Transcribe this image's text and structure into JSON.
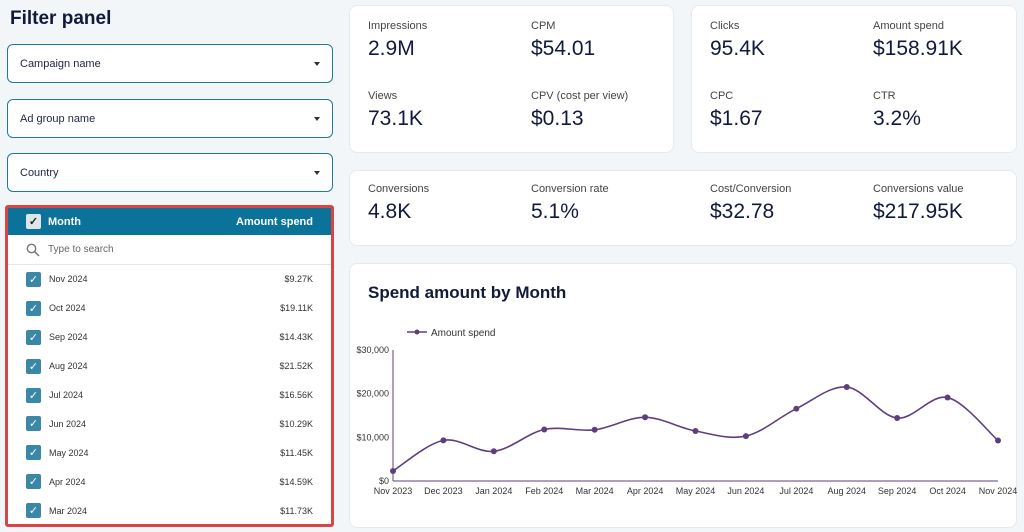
{
  "filter_panel": {
    "title": "Filter panel",
    "dropdowns": [
      "Campaign name",
      "Ad group name",
      "Country"
    ],
    "month_filter": {
      "header_month": "Month",
      "header_amount": "Amount spend",
      "search_placeholder": "Type to search",
      "rows": [
        {
          "month": "Nov 2024",
          "amount": "$9.27K"
        },
        {
          "month": "Oct 2024",
          "amount": "$19.11K"
        },
        {
          "month": "Sep 2024",
          "amount": "$14.43K"
        },
        {
          "month": "Aug 2024",
          "amount": "$21.52K"
        },
        {
          "month": "Jul 2024",
          "amount": "$16.56K"
        },
        {
          "month": "Jun 2024",
          "amount": "$10.29K"
        },
        {
          "month": "May 2024",
          "amount": "$11.45K"
        },
        {
          "month": "Apr 2024",
          "amount": "$14.59K"
        },
        {
          "month": "Mar 2024",
          "amount": "$11.73K"
        }
      ]
    }
  },
  "metrics": {
    "card1": [
      {
        "label": "Impressions",
        "value": "2.9M"
      },
      {
        "label": "CPM",
        "value": "$54.01"
      },
      {
        "label": "Views",
        "value": "73.1K"
      },
      {
        "label": "CPV (cost per view)",
        "value": "$0.13"
      }
    ],
    "card2": [
      {
        "label": "Clicks",
        "value": "95.4K"
      },
      {
        "label": "Amount spend",
        "value": "$158.91K"
      },
      {
        "label": "CPC",
        "value": "$1.67"
      },
      {
        "label": "CTR",
        "value": "3.2%"
      }
    ],
    "card3": [
      {
        "label": "Conversions",
        "value": "4.8K"
      },
      {
        "label": "Conversion rate",
        "value": "5.1%"
      },
      {
        "label": "Cost/Conversion",
        "value": "$32.78"
      },
      {
        "label": "Conversions value",
        "value": "$217.95K"
      }
    ]
  },
  "chart_data": {
    "type": "line",
    "title": "Spend amount by Month",
    "xlabel": "",
    "ylabel": "",
    "categories": [
      "Nov 2023",
      "Dec 2023",
      "Jan 2024",
      "Feb 2024",
      "Mar 2024",
      "Apr 2024",
      "May 2024",
      "Jun 2024",
      "Jul 2024",
      "Aug 2024",
      "Sep 2024",
      "Oct 2024",
      "Nov 2024"
    ],
    "series": [
      {
        "name": "Amount spend",
        "values": [
          2300,
          9300,
          6800,
          11800,
          11730,
          14590,
          11450,
          10290,
          16560,
          21520,
          14430,
          19110,
          9270
        ]
      }
    ],
    "ylim": [
      0,
      30000
    ],
    "yticks": [
      "$0",
      "$10,000",
      "$20,000",
      "$30,000"
    ],
    "legend": "top-left",
    "grid": false,
    "color": "#5e3f7e"
  }
}
